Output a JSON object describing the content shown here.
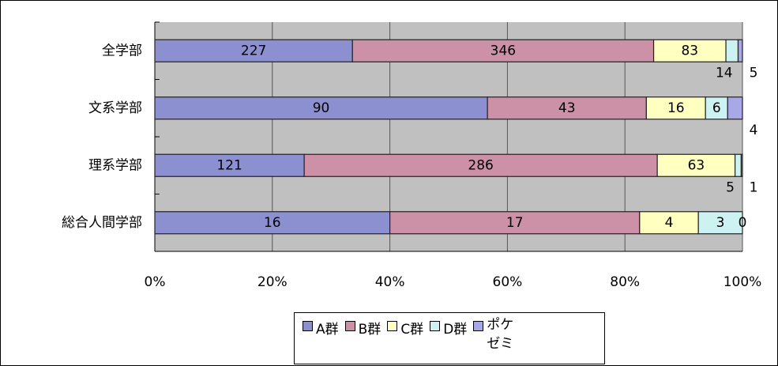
{
  "chart_data": {
    "type": "bar",
    "orientation": "horizontal",
    "stacking": "percent",
    "categories": [
      "全学部",
      "文系学部",
      "理系学部",
      "総合人間学部"
    ],
    "series": [
      {
        "name": "A群",
        "color": "#8c8fd0",
        "values": [
          227,
          90,
          121,
          16
        ]
      },
      {
        "name": "B群",
        "color": "#cc91a6",
        "values": [
          346,
          43,
          286,
          17
        ]
      },
      {
        "name": "C群",
        "color": "#ffffc0",
        "values": [
          83,
          16,
          63,
          4
        ]
      },
      {
        "name": "D群",
        "color": "#ccf2f2",
        "values": [
          14,
          6,
          5,
          3
        ]
      },
      {
        "name": "ポケゼミ",
        "color": "#a8a8e8",
        "values": [
          5,
          4,
          1,
          0
        ]
      }
    ],
    "xlim": [
      0,
      100
    ],
    "xticks": [
      {
        "value": 0,
        "label": "0%"
      },
      {
        "value": 20,
        "label": "20%"
      },
      {
        "value": 40,
        "label": "40%"
      },
      {
        "value": 60,
        "label": "60%"
      },
      {
        "value": 80,
        "label": "80%"
      },
      {
        "value": 100,
        "label": "100%"
      }
    ],
    "grid": true,
    "legend": "bottom"
  }
}
